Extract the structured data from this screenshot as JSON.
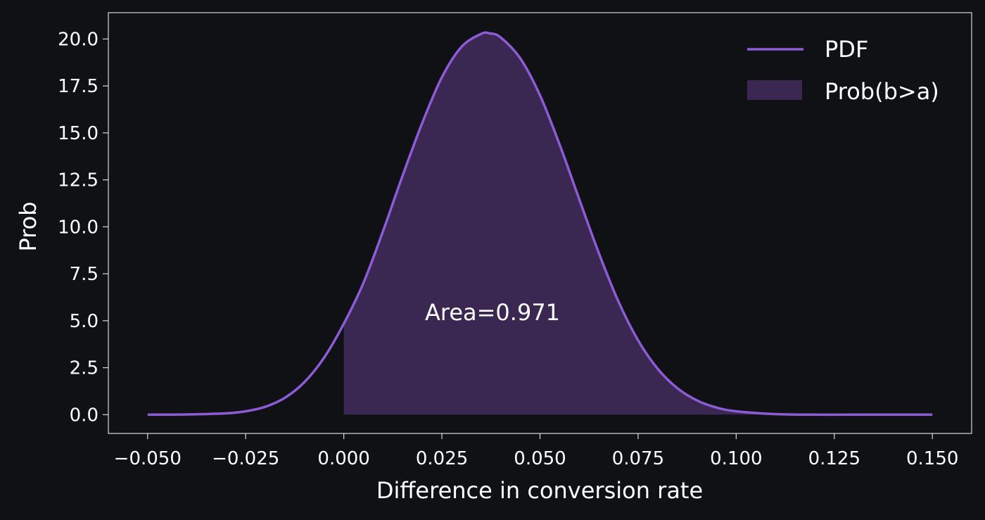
{
  "colors": {
    "background": "#0f1114",
    "axes": "#d9d9d9",
    "pdf_line": "#8e5bd6",
    "fill": "#3a2852",
    "text": "#ffffff"
  },
  "chart_data": {
    "type": "line",
    "title": "",
    "xlabel": "Difference in conversion rate",
    "ylabel": "Prob",
    "xlim": [
      -0.06,
      0.16
    ],
    "ylim": [
      -1.0,
      21.4
    ],
    "grid": false,
    "legend_position": "top-right",
    "x_ticks": [
      -0.05,
      -0.025,
      0.0,
      0.025,
      0.05,
      0.075,
      0.1,
      0.125,
      0.15
    ],
    "x_tick_labels": [
      "−0.050",
      "−0.025",
      "0.000",
      "0.025",
      "0.050",
      "0.075",
      "0.100",
      "0.125",
      "0.150"
    ],
    "y_ticks": [
      0.0,
      2.5,
      5.0,
      7.5,
      10.0,
      12.5,
      15.0,
      17.5,
      20.0
    ],
    "y_tick_labels": [
      "0.0",
      "2.5",
      "5.0",
      "7.5",
      "10.0",
      "12.5",
      "15.0",
      "17.5",
      "20.0"
    ],
    "series": [
      {
        "name": "PDF",
        "kind": "line",
        "x": [
          -0.05,
          -0.04,
          -0.03,
          -0.025,
          -0.02,
          -0.015,
          -0.01,
          -0.005,
          0.0,
          0.005,
          0.01,
          0.015,
          0.02,
          0.025,
          0.03,
          0.035,
          0.0372,
          0.04,
          0.045,
          0.05,
          0.055,
          0.06,
          0.065,
          0.07,
          0.075,
          0.08,
          0.085,
          0.09,
          0.095,
          0.1,
          0.11,
          0.12,
          0.13,
          0.15
        ],
        "y": [
          0.0,
          0.01,
          0.07,
          0.18,
          0.42,
          0.9,
          1.74,
          3.04,
          4.84,
          7.01,
          9.77,
          12.73,
          15.53,
          17.96,
          19.58,
          20.27,
          20.3,
          20.08,
          18.96,
          17.0,
          14.38,
          11.47,
          8.6,
          6.02,
          3.96,
          2.44,
          1.41,
          0.76,
          0.38,
          0.18,
          0.03,
          0.0,
          0.0,
          0.0
        ]
      },
      {
        "name": "Prob(b>a)",
        "kind": "area",
        "x_from": 0.0,
        "area": 0.971
      }
    ],
    "annotations": [
      {
        "text": "Area=0.971",
        "x": 0.0375,
        "y": 5.0
      }
    ]
  }
}
